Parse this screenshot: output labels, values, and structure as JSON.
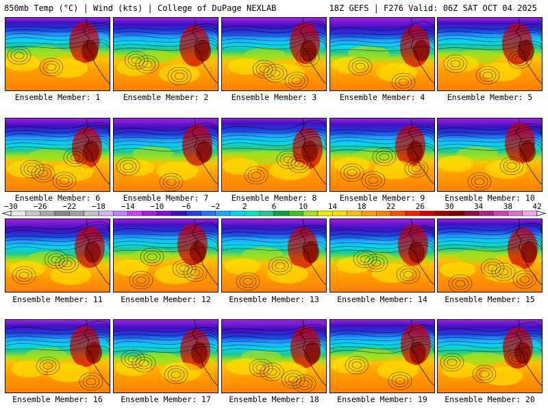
{
  "header": {
    "left_title": "850mb Temp (°C) | Wind (kts) | College of DuPage NEXLAB",
    "right_title": "18Z GEFS | F276 Valid: 06Z SAT OCT 04 2025"
  },
  "panels": [
    {
      "label": "Ensemble Member: 1"
    },
    {
      "label": "Ensemble Member: 2"
    },
    {
      "label": "Ensemble Member: 3"
    },
    {
      "label": "Ensemble Member: 4"
    },
    {
      "label": "Ensemble Member: 5"
    },
    {
      "label": "Ensemble Member: 6"
    },
    {
      "label": "Ensemble Member: 7"
    },
    {
      "label": "Ensemble Member: 8"
    },
    {
      "label": "Ensemble Member: 9"
    },
    {
      "label": "Ensemble Member: 10"
    },
    {
      "label": "Ensemble Member: 11"
    },
    {
      "label": "Ensemble Member: 12"
    },
    {
      "label": "Ensemble Member: 13"
    },
    {
      "label": "Ensemble Member: 14"
    },
    {
      "label": "Ensemble Member: 15"
    },
    {
      "label": "Ensemble Member: 16"
    },
    {
      "label": "Ensemble Member: 17"
    },
    {
      "label": "Ensemble Member: 18"
    },
    {
      "label": "Ensemble Member: 19"
    },
    {
      "label": "Ensemble Member: 20"
    }
  ],
  "chart_data": {
    "type": "heatmap",
    "title": "850mb Temp (°C) | Wind (kts)",
    "variable_units": "°C",
    "colorbar": {
      "ticks": [
        -30,
        -26,
        -22,
        -18,
        -14,
        -10,
        -6,
        -2,
        2,
        6,
        10,
        14,
        18,
        22,
        26,
        30,
        34,
        38,
        42
      ],
      "bins": [
        {
          "from": -30,
          "to": -28,
          "color": "#e8e8e8"
        },
        {
          "from": -28,
          "to": -26,
          "color": "#c8c8c8"
        },
        {
          "from": -26,
          "to": -24,
          "color": "#a8a8a8"
        },
        {
          "from": -24,
          "to": -22,
          "color": "#888888"
        },
        {
          "from": -22,
          "to": -20,
          "color": "#a0a0a0"
        },
        {
          "from": -20,
          "to": -18,
          "color": "#c4c4c4"
        },
        {
          "from": -18,
          "to": -16,
          "color": "#d8b4f0"
        },
        {
          "from": -16,
          "to": -14,
          "color": "#c080ff"
        },
        {
          "from": -14,
          "to": -12,
          "color": "#d040f0"
        },
        {
          "from": -12,
          "to": -10,
          "color": "#a020e0"
        },
        {
          "from": -10,
          "to": -8,
          "color": "#8010d0"
        },
        {
          "from": -8,
          "to": -6,
          "color": "#4010c0"
        },
        {
          "from": -6,
          "to": -4,
          "color": "#2040e0"
        },
        {
          "from": -4,
          "to": -2,
          "color": "#3070ff"
        },
        {
          "from": -2,
          "to": 0,
          "color": "#20a8ff"
        },
        {
          "from": 0,
          "to": 2,
          "color": "#00d8f0"
        },
        {
          "from": 2,
          "to": 4,
          "color": "#00e8c0"
        },
        {
          "from": 4,
          "to": 6,
          "color": "#20c890"
        },
        {
          "from": 6,
          "to": 8,
          "color": "#10a040"
        },
        {
          "from": 8,
          "to": 10,
          "color": "#40c020"
        },
        {
          "from": 10,
          "to": 12,
          "color": "#a0e020"
        },
        {
          "from": 12,
          "to": 14,
          "color": "#e8f000"
        },
        {
          "from": 14,
          "to": 16,
          "color": "#ffe000"
        },
        {
          "from": 16,
          "to": 18,
          "color": "#ffc000"
        },
        {
          "from": 18,
          "to": 20,
          "color": "#ffa000"
        },
        {
          "from": 20,
          "to": 22,
          "color": "#ff8000"
        },
        {
          "from": 22,
          "to": 24,
          "color": "#ff5000"
        },
        {
          "from": 24,
          "to": 26,
          "color": "#f02000"
        },
        {
          "from": 26,
          "to": 28,
          "color": "#d00000"
        },
        {
          "from": 28,
          "to": 30,
          "color": "#a00000"
        },
        {
          "from": 30,
          "to": 32,
          "color": "#800000"
        },
        {
          "from": 32,
          "to": 34,
          "color": "#901040"
        },
        {
          "from": 34,
          "to": 36,
          "color": "#b02080"
        },
        {
          "from": 36,
          "to": 38,
          "color": "#d040b0"
        },
        {
          "from": 38,
          "to": 40,
          "color": "#e070d0"
        },
        {
          "from": 40,
          "to": 42,
          "color": "#f0a8e8"
        }
      ]
    },
    "grid": {
      "rows": 4,
      "columns": 5,
      "members": 20
    },
    "model": "18Z GEFS",
    "forecast_hour": "F276",
    "valid": "06Z SAT OCT 04 2025"
  }
}
